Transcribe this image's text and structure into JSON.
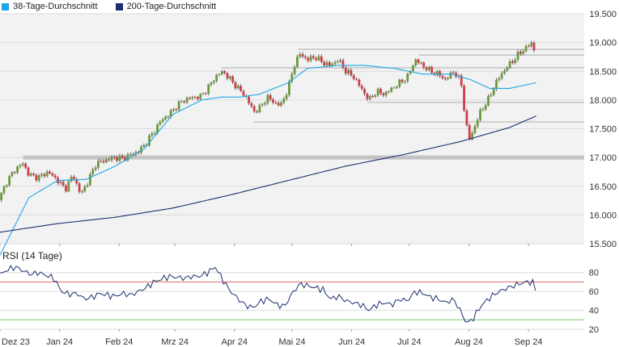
{
  "legend": {
    "items": [
      {
        "label": "38-Tage-Durchschnitt",
        "color": "#1ea7e6"
      },
      {
        "label": "200-Tage-Durchschnitt",
        "color": "#1b2f6e"
      }
    ]
  },
  "chart_data": [
    {
      "type": "candlestick",
      "title": "",
      "ylim": [
        15500,
        19500
      ],
      "y_ticks": [
        "15.500",
        "16.000",
        "16.500",
        "17.000",
        "17.500",
        "18.000",
        "18.500",
        "19.000",
        "19.500"
      ],
      "x_ticks": [
        "Dez 23",
        "Jan 24",
        "Feb 24",
        "Mrz 24",
        "Apr 24",
        "Mai 24",
        "Jun 24",
        "Jul 24",
        "Aug 24",
        "Sep 24"
      ],
      "x_tick_days": [
        0,
        31,
        62,
        91,
        122,
        152,
        183,
        213,
        244,
        275
      ],
      "x_range_days": [
        0,
        304
      ],
      "colors": {
        "up": "#6b9a3a",
        "down": "#d43a4a",
        "sma38": "#1ea7e6",
        "sma200": "#1b2f6e",
        "grid": "#dcdcdc",
        "support": "#bdbdbd",
        "plot_bg": "#f2f2f2"
      },
      "support_lines": [
        {
          "value": 17000,
          "from_day": 12
        },
        {
          "value": 17620,
          "from_day": 132
        },
        {
          "value": 17960,
          "from_day": 191
        },
        {
          "value": 18560,
          "from_day": 115
        },
        {
          "value": 18780,
          "from_day": 218
        },
        {
          "value": 18880,
          "from_day": 155
        }
      ],
      "close_series": {
        "anchors": [
          [
            0,
            16300
          ],
          [
            3,
            16550
          ],
          [
            8,
            16800
          ],
          [
            12,
            16900
          ],
          [
            15,
            16700
          ],
          [
            20,
            16650
          ],
          [
            25,
            16750
          ],
          [
            30,
            16600
          ],
          [
            34,
            16450
          ],
          [
            38,
            16700
          ],
          [
            42,
            16350
          ],
          [
            46,
            16600
          ],
          [
            50,
            16900
          ],
          [
            55,
            16950
          ],
          [
            60,
            17000
          ],
          [
            64,
            16980
          ],
          [
            68,
            17050
          ],
          [
            72,
            17100
          ],
          [
            76,
            17250
          ],
          [
            80,
            17450
          ],
          [
            84,
            17650
          ],
          [
            88,
            17750
          ],
          [
            92,
            17900
          ],
          [
            96,
            18000
          ],
          [
            100,
            18050
          ],
          [
            104,
            18050
          ],
          [
            108,
            18200
          ],
          [
            112,
            18400
          ],
          [
            116,
            18500
          ],
          [
            120,
            18350
          ],
          [
            124,
            18200
          ],
          [
            128,
            18050
          ],
          [
            132,
            17800
          ],
          [
            135,
            17850
          ],
          [
            139,
            18050
          ],
          [
            143,
            17950
          ],
          [
            146,
            17900
          ],
          [
            150,
            18200
          ],
          [
            153,
            18600
          ],
          [
            156,
            18800
          ],
          [
            160,
            18700
          ],
          [
            164,
            18750
          ],
          [
            168,
            18650
          ],
          [
            172,
            18600
          ],
          [
            176,
            18700
          ],
          [
            180,
            18500
          ],
          [
            184,
            18400
          ],
          [
            188,
            18200
          ],
          [
            192,
            18000
          ],
          [
            196,
            18150
          ],
          [
            200,
            18100
          ],
          [
            204,
            18200
          ],
          [
            208,
            18300
          ],
          [
            212,
            18400
          ],
          [
            216,
            18700
          ],
          [
            220,
            18600
          ],
          [
            224,
            18500
          ],
          [
            228,
            18450
          ],
          [
            232,
            18350
          ],
          [
            236,
            18500
          ],
          [
            240,
            18300
          ],
          [
            242,
            17700
          ],
          [
            244,
            17300
          ],
          [
            246,
            17450
          ],
          [
            250,
            17800
          ],
          [
            254,
            18000
          ],
          [
            258,
            18300
          ],
          [
            262,
            18500
          ],
          [
            266,
            18650
          ],
          [
            270,
            18800
          ],
          [
            274,
            18920
          ],
          [
            277,
            18990
          ],
          [
            279,
            18750
          ]
        ],
        "trading_day_step": 1.4
      },
      "sma38_series": {
        "anchors": [
          [
            0,
            15300
          ],
          [
            15,
            16300
          ],
          [
            30,
            16600
          ],
          [
            45,
            16620
          ],
          [
            60,
            16850
          ],
          [
            75,
            17150
          ],
          [
            90,
            17750
          ],
          [
            105,
            18000
          ],
          [
            115,
            18050
          ],
          [
            125,
            18050
          ],
          [
            135,
            18100
          ],
          [
            150,
            18300
          ],
          [
            160,
            18550
          ],
          [
            175,
            18600
          ],
          [
            190,
            18600
          ],
          [
            205,
            18550
          ],
          [
            220,
            18450
          ],
          [
            235,
            18450
          ],
          [
            245,
            18350
          ],
          [
            255,
            18200
          ],
          [
            265,
            18200
          ],
          [
            279,
            18300
          ]
        ]
      },
      "sma200_series": {
        "anchors": [
          [
            0,
            15700
          ],
          [
            30,
            15850
          ],
          [
            60,
            15960
          ],
          [
            90,
            16120
          ],
          [
            120,
            16350
          ],
          [
            150,
            16600
          ],
          [
            180,
            16850
          ],
          [
            210,
            17050
          ],
          [
            240,
            17280
          ],
          [
            265,
            17520
          ],
          [
            279,
            17720
          ]
        ]
      }
    },
    {
      "type": "line",
      "title": "RSI (14 Tage)",
      "ylim": [
        20,
        90
      ],
      "y_ticks": [
        "20",
        "40",
        "60",
        "80"
      ],
      "overbought": 70,
      "oversold": 30,
      "colors": {
        "line": "#1b2f6e",
        "overbought": "#e06a6a",
        "oversold": "#7bc86c"
      },
      "anchors": [
        [
          0,
          78
        ],
        [
          4,
          83
        ],
        [
          8,
          86
        ],
        [
          12,
          82
        ],
        [
          16,
          78
        ],
        [
          20,
          80
        ],
        [
          24,
          77
        ],
        [
          28,
          74
        ],
        [
          32,
          60
        ],
        [
          36,
          57
        ],
        [
          40,
          58
        ],
        [
          44,
          52
        ],
        [
          48,
          54
        ],
        [
          52,
          58
        ],
        [
          56,
          56
        ],
        [
          60,
          55
        ],
        [
          64,
          58
        ],
        [
          68,
          56
        ],
        [
          72,
          60
        ],
        [
          76,
          64
        ],
        [
          80,
          70
        ],
        [
          84,
          73
        ],
        [
          88,
          76
        ],
        [
          92,
          75
        ],
        [
          96,
          74
        ],
        [
          100,
          76
        ],
        [
          104,
          76
        ],
        [
          108,
          80
        ],
        [
          112,
          86
        ],
        [
          116,
          72
        ],
        [
          120,
          60
        ],
        [
          124,
          52
        ],
        [
          128,
          45
        ],
        [
          132,
          43
        ],
        [
          136,
          50
        ],
        [
          140,
          52
        ],
        [
          144,
          46
        ],
        [
          148,
          44
        ],
        [
          152,
          58
        ],
        [
          156,
          68
        ],
        [
          160,
          66
        ],
        [
          164,
          64
        ],
        [
          168,
          62
        ],
        [
          172,
          52
        ],
        [
          176,
          55
        ],
        [
          180,
          50
        ],
        [
          184,
          48
        ],
        [
          188,
          46
        ],
        [
          192,
          40
        ],
        [
          196,
          46
        ],
        [
          200,
          48
        ],
        [
          204,
          46
        ],
        [
          208,
          52
        ],
        [
          212,
          50
        ],
        [
          216,
          60
        ],
        [
          220,
          58
        ],
        [
          224,
          54
        ],
        [
          228,
          52
        ],
        [
          232,
          48
        ],
        [
          236,
          52
        ],
        [
          240,
          38
        ],
        [
          242,
          29
        ],
        [
          244,
          27
        ],
        [
          246,
          31
        ],
        [
          250,
          44
        ],
        [
          254,
          52
        ],
        [
          258,
          58
        ],
        [
          262,
          62
        ],
        [
          266,
          65
        ],
        [
          270,
          68
        ],
        [
          274,
          70
        ],
        [
          277,
          70
        ],
        [
          279,
          61
        ]
      ]
    }
  ]
}
